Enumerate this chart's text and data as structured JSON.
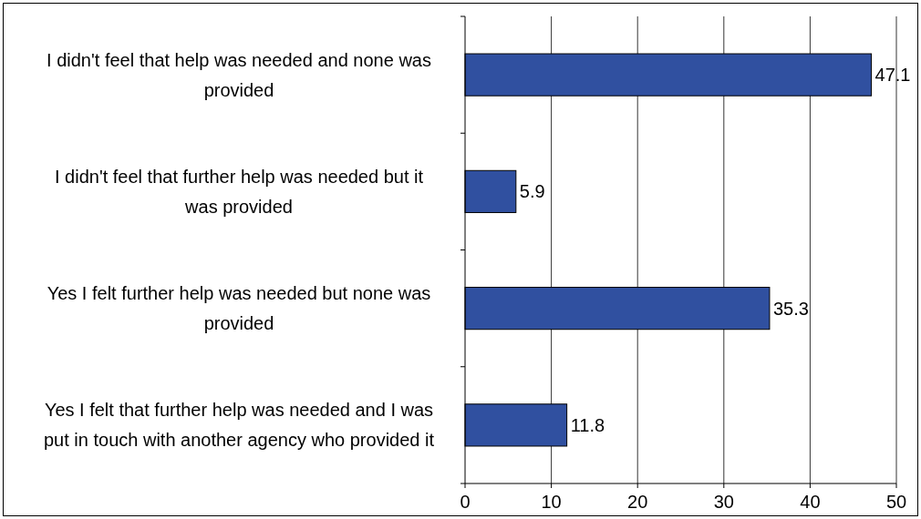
{
  "chart_data": {
    "type": "bar",
    "orientation": "horizontal",
    "categories": [
      "I didn't feel that help was needed and none was provided",
      "I didn't feel that further help was needed but it was provided",
      "Yes I felt further help was needed but none was provided",
      "Yes I felt that further help was needed and I was put in touch with another agency who provided it"
    ],
    "values": [
      47.1,
      5.9,
      35.3,
      11.8
    ],
    "color": "#3050a0",
    "xlim": [
      0,
      50
    ],
    "xticks": [
      0,
      10,
      20,
      30,
      40,
      50
    ],
    "grid": "x",
    "data_labels": true
  }
}
